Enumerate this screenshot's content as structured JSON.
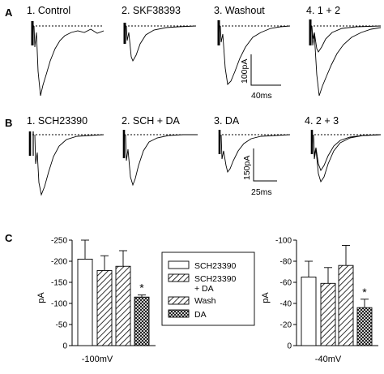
{
  "panels": {
    "A": {
      "label": "A",
      "traces": [
        "1. Control",
        "2. SKF38393",
        "3. Washout",
        "4. 1 + 2"
      ],
      "scale_y": "100pA",
      "scale_x": "40ms"
    },
    "B": {
      "label": "B",
      "traces": [
        "1. SCH23390",
        "2. SCH + DA",
        "3. DA",
        "4. 2 + 3"
      ],
      "scale_y": "150pA",
      "scale_x": "25ms"
    },
    "C": {
      "label": "C"
    }
  },
  "chart_data": [
    {
      "type": "bar",
      "xlabel": "-100mV",
      "ylabel": "pA",
      "ylim": [
        0,
        -250
      ],
      "yticks": [
        "-250",
        "-200",
        "-150",
        "-100",
        "-50",
        "0"
      ],
      "categories": [
        "SCH23390",
        "SCH23390 + DA",
        "Wash",
        "DA"
      ],
      "values": [
        -205,
        -178,
        -188,
        -115
      ],
      "errors": [
        45,
        35,
        37,
        5
      ],
      "significant": [
        false,
        false,
        false,
        true
      ],
      "annotation": "*"
    },
    {
      "type": "bar",
      "xlabel": "-40mV",
      "ylabel": "pA",
      "ylim": [
        0,
        -100
      ],
      "yticks": [
        "-100",
        "-80",
        "-60",
        "-40",
        "-20",
        "0"
      ],
      "categories": [
        "SCH23390",
        "SCH23390 + DA",
        "Wash",
        "DA"
      ],
      "values": [
        -65,
        -59,
        -76,
        -36
      ],
      "errors": [
        15,
        15,
        19,
        8
      ],
      "significant": [
        false,
        false,
        false,
        true
      ],
      "annotation": "*"
    }
  ],
  "legend": {
    "items": [
      {
        "label": "SCH23390",
        "label2": "",
        "pattern": "open"
      },
      {
        "label": "SCH23390",
        "label2": "+ DA",
        "pattern": "hatch"
      },
      {
        "label": "Wash",
        "label2": "",
        "pattern": "hatch"
      },
      {
        "label": "DA",
        "label2": "",
        "pattern": "cross"
      }
    ]
  }
}
